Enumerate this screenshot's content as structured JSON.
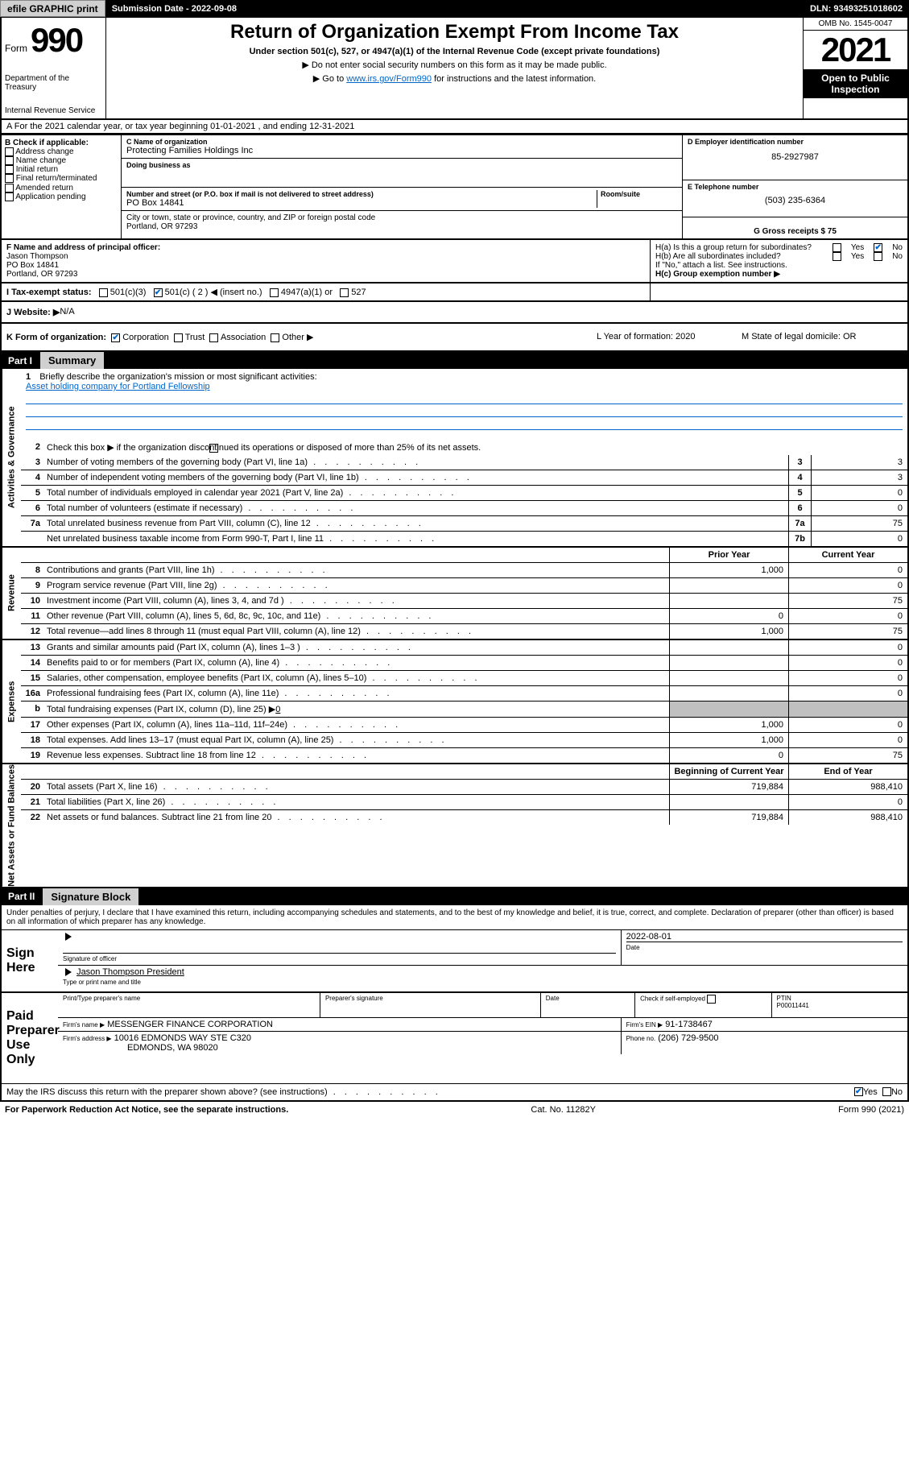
{
  "topbar": {
    "efile": "efile GRAPHIC print",
    "submission_label": "Submission Date - 2022-09-08",
    "dln": "DLN: 93493251018602"
  },
  "header": {
    "form_word": "Form",
    "form_num": "990",
    "dept": "Department of the Treasury",
    "irs": "Internal Revenue Service",
    "title": "Return of Organization Exempt From Income Tax",
    "sub": "Under section 501(c), 527, or 4947(a)(1) of the Internal Revenue Code (except private foundations)",
    "l1": "▶ Do not enter social security numbers on this form as it may be made public.",
    "l2_a": "▶ Go to ",
    "l2_link": "www.irs.gov/Form990",
    "l2_b": " for instructions and the latest information.",
    "omb": "OMB No. 1545-0047",
    "year": "2021",
    "open": "Open to Public Inspection"
  },
  "row_a": "A For the 2021 calendar year, or tax year beginning 01-01-2021   , and ending 12-31-2021",
  "col_b": {
    "cap": "B Check if applicable:",
    "items": [
      "Address change",
      "Name change",
      "Initial return",
      "Final return/terminated",
      "Amended return",
      "Application pending"
    ]
  },
  "col_c": {
    "name_cap": "C Name of organization",
    "name": "Protecting Families Holdings Inc",
    "dba_cap": "Doing business as",
    "dba": "",
    "addr_cap": "Number and street (or P.O. box if mail is not delivered to street address)",
    "room_cap": "Room/suite",
    "addr": "PO Box 14841",
    "city_cap": "City or town, state or province, country, and ZIP or foreign postal code",
    "city": "Portland, OR  97293"
  },
  "col_de": {
    "d_cap": "D Employer identification number",
    "d": "85-2927987",
    "e_cap": "E Telephone number",
    "e": "(503) 235-6364",
    "g": "G Gross receipts $ 75"
  },
  "f": {
    "cap": "F Name and address of principal officer:",
    "name": "Jason Thompson",
    "addr1": "PO Box 14841",
    "addr2": "Portland, OR  97293"
  },
  "h": {
    "a": "H(a)  Is this a group return for subordinates?",
    "yes": "Yes",
    "no": "No",
    "b": "H(b)  Are all subordinates included?",
    "b_note": "If \"No,\" attach a list. See instructions.",
    "c": "H(c)  Group exemption number ▶"
  },
  "row_i": {
    "label": "I    Tax-exempt status:",
    "opts": [
      "501(c)(3)",
      "501(c) ( 2 ) ◀ (insert no.)",
      "4947(a)(1) or",
      "527"
    ]
  },
  "row_j": {
    "label": "J   Website: ▶",
    "val": " N/A"
  },
  "row_k": {
    "label": "K Form of organization:",
    "opts": [
      "Corporation",
      "Trust",
      "Association",
      "Other ▶"
    ]
  },
  "row_l": {
    "label": "L Year of formation: 2020"
  },
  "row_m": {
    "label": "M State of legal domicile: OR"
  },
  "part1": {
    "label": "Part I",
    "title": "Summary"
  },
  "vtabs": {
    "act": "Activities & Governance",
    "rev": "Revenue",
    "exp": "Expenses",
    "net": "Net Assets or Fund Balances"
  },
  "s1": {
    "n": "1",
    "txt": "Briefly describe the organization's mission or most significant activities:",
    "mission": "Asset holding company for Portland Fellowship"
  },
  "s2": {
    "n": "2",
    "txt": "Check this box ▶      if the organization discontinued its operations or disposed of more than 25% of its net assets."
  },
  "rows_gov": [
    {
      "n": "3",
      "txt": "Number of voting members of the governing body (Part VI, line 1a)",
      "box": "3",
      "val": "3"
    },
    {
      "n": "4",
      "txt": "Number of independent voting members of the governing body (Part VI, line 1b)",
      "box": "4",
      "val": "3"
    },
    {
      "n": "5",
      "txt": "Total number of individuals employed in calendar year 2021 (Part V, line 2a)",
      "box": "5",
      "val": "0"
    },
    {
      "n": "6",
      "txt": "Total number of volunteers (estimate if necessary)",
      "box": "6",
      "val": "0"
    },
    {
      "n": "7a",
      "txt": "Total unrelated business revenue from Part VIII, column (C), line 12",
      "box": "7a",
      "val": "75"
    },
    {
      "n": "",
      "txt": "Net unrelated business taxable income from Form 990-T, Part I, line 11",
      "box": "7b",
      "val": "0"
    }
  ],
  "col_hdrs": {
    "prior": "Prior Year",
    "curr": "Current Year"
  },
  "rows_rev": [
    {
      "n": "8",
      "txt": "Contributions and grants (Part VIII, line 1h)",
      "p": "1,000",
      "c": "0"
    },
    {
      "n": "9",
      "txt": "Program service revenue (Part VIII, line 2g)",
      "p": "",
      "c": "0"
    },
    {
      "n": "10",
      "txt": "Investment income (Part VIII, column (A), lines 3, 4, and 7d )",
      "p": "",
      "c": "75"
    },
    {
      "n": "11",
      "txt": "Other revenue (Part VIII, column (A), lines 5, 6d, 8c, 9c, 10c, and 11e)",
      "p": "0",
      "c": "0"
    },
    {
      "n": "12",
      "txt": "Total revenue—add lines 8 through 11 (must equal Part VIII, column (A), line 12)",
      "p": "1,000",
      "c": "75"
    }
  ],
  "rows_exp": [
    {
      "n": "13",
      "txt": "Grants and similar amounts paid (Part IX, column (A), lines 1–3 )",
      "p": "",
      "c": "0"
    },
    {
      "n": "14",
      "txt": "Benefits paid to or for members (Part IX, column (A), line 4)",
      "p": "",
      "c": "0"
    },
    {
      "n": "15",
      "txt": "Salaries, other compensation, employee benefits (Part IX, column (A), lines 5–10)",
      "p": "",
      "c": "0"
    },
    {
      "n": "16a",
      "txt": "Professional fundraising fees (Part IX, column (A), line 11e)",
      "p": "",
      "c": "0"
    }
  ],
  "row_16b": {
    "n": "b",
    "txt": "Total fundraising expenses (Part IX, column (D), line 25) ▶",
    "u": "0"
  },
  "rows_exp2": [
    {
      "n": "17",
      "txt": "Other expenses (Part IX, column (A), lines 11a–11d, 11f–24e)",
      "p": "1,000",
      "c": "0"
    },
    {
      "n": "18",
      "txt": "Total expenses. Add lines 13–17 (must equal Part IX, column (A), line 25)",
      "p": "1,000",
      "c": "0"
    },
    {
      "n": "19",
      "txt": "Revenue less expenses. Subtract line 18 from line 12",
      "p": "0",
      "c": "75"
    }
  ],
  "net_hdrs": {
    "beg": "Beginning of Current Year",
    "end": "End of Year"
  },
  "rows_net": [
    {
      "n": "20",
      "txt": "Total assets (Part X, line 16)",
      "p": "719,884",
      "c": "988,410"
    },
    {
      "n": "21",
      "txt": "Total liabilities (Part X, line 26)",
      "p": "",
      "c": "0"
    },
    {
      "n": "22",
      "txt": "Net assets or fund balances. Subtract line 21 from line 20",
      "p": "719,884",
      "c": "988,410"
    }
  ],
  "part2": {
    "label": "Part II",
    "title": "Signature Block"
  },
  "sig_p": "Under penalties of perjury, I declare that I have examined this return, including accompanying schedules and statements, and to the best of my knowledge and belief, it is true, correct, and complete. Declaration of preparer (other than officer) is based on all information of which preparer has any knowledge.",
  "sign_here": "Sign Here",
  "sign": {
    "sig_cap": "Signature of officer",
    "date": "2022-08-01",
    "date_cap": "Date",
    "name": "Jason Thompson President",
    "name_cap": "Type or print name and title"
  },
  "paid": {
    "label": "Paid Preparer Use Only",
    "h1": "Print/Type preparer's name",
    "h2": "Preparer's signature",
    "h3": "Date",
    "h4": "Check        if self-employed",
    "h5": "PTIN",
    "ptin": "P00011441",
    "firm_name_cap": "Firm's name   ▶",
    "firm_name": "MESSENGER FINANCE CORPORATION",
    "firm_ein_cap": "Firm's EIN ▶",
    "firm_ein": "91-1738467",
    "firm_addr_cap": "Firm's address ▶",
    "firm_addr1": "10016 EDMONDS WAY STE C320",
    "firm_addr2": "EDMONDS, WA  98020",
    "phone_cap": "Phone no.",
    "phone": "(206) 729-9500"
  },
  "may_discuss": "May the IRS discuss this return with the preparer shown above? (see instructions)",
  "footer": {
    "left": "For Paperwork Reduction Act Notice, see the separate instructions.",
    "mid": "Cat. No. 11282Y",
    "right": "Form 990 (2021)"
  }
}
